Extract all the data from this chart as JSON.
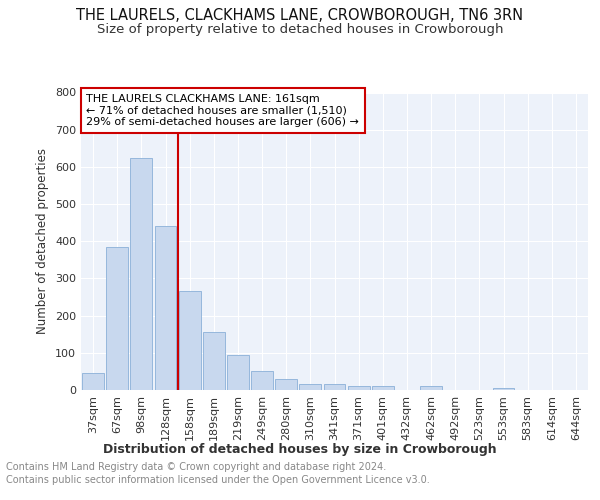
{
  "title1": "THE LAURELS, CLACKHAMS LANE, CROWBOROUGH, TN6 3RN",
  "title2": "Size of property relative to detached houses in Crowborough",
  "xlabel": "Distribution of detached houses by size in Crowborough",
  "ylabel": "Number of detached properties",
  "categories": [
    "37sqm",
    "67sqm",
    "98sqm",
    "128sqm",
    "158sqm",
    "189sqm",
    "219sqm",
    "249sqm",
    "280sqm",
    "310sqm",
    "341sqm",
    "371sqm",
    "401sqm",
    "432sqm",
    "462sqm",
    "492sqm",
    "523sqm",
    "553sqm",
    "583sqm",
    "614sqm",
    "644sqm"
  ],
  "values": [
    45,
    385,
    625,
    440,
    265,
    155,
    95,
    50,
    30,
    15,
    15,
    10,
    10,
    0,
    10,
    0,
    0,
    5,
    0,
    0,
    0
  ],
  "bar_color": "#c8d8ee",
  "bar_edge_color": "#8ab0d8",
  "annotation_title": "THE LAURELS CLACKHAMS LANE: 161sqm",
  "annotation_line1": "← 71% of detached houses are smaller (1,510)",
  "annotation_line2": "29% of semi-detached houses are larger (606) →",
  "annotation_box_color": "#ffffff",
  "annotation_box_edge": "#cc0000",
  "red_line_index": 4,
  "ylim": [
    0,
    800
  ],
  "yticks": [
    0,
    100,
    200,
    300,
    400,
    500,
    600,
    700,
    800
  ],
  "footer1": "Contains HM Land Registry data © Crown copyright and database right 2024.",
  "footer2": "Contains public sector information licensed under the Open Government Licence v3.0.",
  "bg_color": "#ffffff",
  "plot_bg_color": "#edf2fa",
  "grid_color": "#ffffff",
  "title1_fontsize": 10.5,
  "title2_fontsize": 9.5,
  "xlabel_fontsize": 9,
  "ylabel_fontsize": 8.5,
  "tick_fontsize": 8,
  "annotation_fontsize": 8,
  "footer_fontsize": 7
}
